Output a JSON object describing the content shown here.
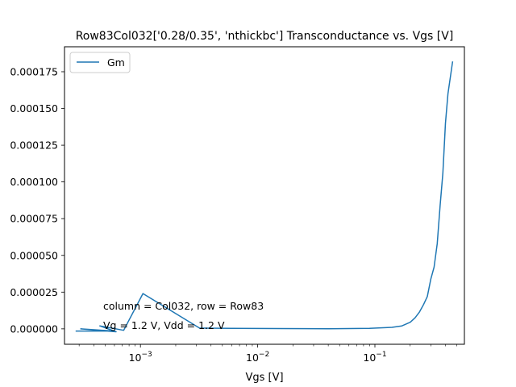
{
  "chart_data": {
    "type": "line",
    "title": "Row83Col032['0.28/0.35', 'nthickbc'] Transconductance vs. Vgs [V]",
    "xlabel": "Vgs [V]",
    "ylabel": "",
    "xscale": "log",
    "xlim": [
      0.000225,
      0.58
    ],
    "ylim": [
      -1.05e-05,
      0.000192
    ],
    "grid": false,
    "legend": {
      "placement": "top-left",
      "entries": [
        "Gm"
      ]
    },
    "x_ticks": [
      {
        "value": 0.001,
        "label": "10^-3"
      },
      {
        "value": 0.01,
        "label": "10^-2"
      },
      {
        "value": 0.1,
        "label": "10^-1"
      }
    ],
    "y_ticks": [
      {
        "value": 0.0,
        "label": "0.000000"
      },
      {
        "value": 2.5e-05,
        "label": "0.000025"
      },
      {
        "value": 5e-05,
        "label": "0.000050"
      },
      {
        "value": 7.5e-05,
        "label": "0.000075"
      },
      {
        "value": 0.0001,
        "label": "0.000100"
      },
      {
        "value": 0.000125,
        "label": "0.000125"
      },
      {
        "value": 0.00015,
        "label": "0.000150"
      },
      {
        "value": 0.000175,
        "label": "0.000175"
      }
    ],
    "annotations": [
      {
        "text": "column = Col032, row = Row83"
      },
      {
        "text": "Vg = 1.2 V, Vdd = 1.2 V"
      }
    ],
    "series": [
      {
        "name": "Gm",
        "color": "#1f77b4",
        "x": [
          0.00028,
          0.0006,
          0.00031,
          0.00062,
          0.00045,
          0.00072,
          0.00105,
          0.0032,
          0.006,
          0.015,
          0.04,
          0.09,
          0.14,
          0.17,
          0.2,
          0.22,
          0.24,
          0.26,
          0.28,
          0.3,
          0.32,
          0.34,
          0.36,
          0.38,
          0.4,
          0.42,
          0.46
        ],
        "y": [
          -1.5e-06,
          -1.5e-06,
          0.0,
          -2e-06,
          2e-06,
          -1e-06,
          2.4e-05,
          5e-07,
          3e-07,
          2e-07,
          1e-07,
          3e-07,
          1e-06,
          2e-06,
          4.5e-06,
          7.5e-06,
          1.15e-05,
          1.65e-05,
          2.2e-05,
          3.4e-05,
          4.2e-05,
          5.8e-05,
          8.4e-05,
          0.000106,
          0.00014,
          0.00016,
          0.000182
        ]
      }
    ]
  }
}
